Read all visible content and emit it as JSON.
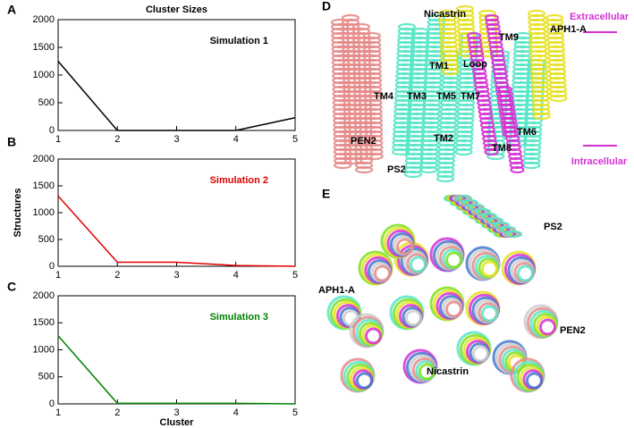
{
  "chart_data": [
    {
      "type": "line",
      "title": "Cluster Sizes",
      "annotation": "Simulation 1",
      "color": "#000000",
      "x": [
        1,
        2,
        3,
        4,
        5
      ],
      "values": [
        1250,
        0,
        0,
        0,
        230
      ],
      "xlim": [
        1,
        5
      ],
      "ylim": [
        0,
        2000
      ],
      "xticks": [
        1,
        2,
        3,
        4,
        5
      ],
      "yticks": [
        0,
        500,
        1000,
        1500,
        2000
      ]
    },
    {
      "type": "line",
      "annotation": "Simulation 2",
      "ylabel": "Structures",
      "color": "#e00000",
      "x": [
        1,
        2,
        3,
        4,
        5
      ],
      "values": [
        1310,
        75,
        75,
        15,
        0
      ],
      "xlim": [
        1,
        5
      ],
      "ylim": [
        0,
        2000
      ],
      "xticks": [
        1,
        2,
        3,
        4,
        5
      ],
      "yticks": [
        0,
        500,
        1000,
        1500,
        2000
      ]
    },
    {
      "type": "line",
      "annotation": "Simulation 3",
      "xlabel": "Cluster",
      "color": "#008000",
      "x": [
        1,
        2,
        3,
        4,
        5
      ],
      "values": [
        1260,
        10,
        10,
        10,
        0
      ],
      "xlim": [
        1,
        5
      ],
      "ylim": [
        0,
        2000
      ],
      "xticks": [
        1,
        2,
        3,
        4,
        5
      ],
      "yticks": [
        0,
        500,
        1000,
        1500,
        2000
      ]
    }
  ],
  "panel_letters": [
    "A",
    "B",
    "C",
    "D",
    "E"
  ],
  "structure_d": {
    "labels": [
      "Nicastrin",
      "APH1-A",
      "TM9",
      "Loop",
      "TM1",
      "TM4",
      "TM3",
      "TM5",
      "TM7",
      "TM2",
      "TM6",
      "TM8",
      "PEN2",
      "PS2"
    ],
    "membrane": [
      "Extracellular",
      "Intracellular"
    ]
  },
  "structure_e": {
    "labels": [
      "PS2",
      "APH1-A",
      "PEN2",
      "Nicastrin"
    ]
  }
}
